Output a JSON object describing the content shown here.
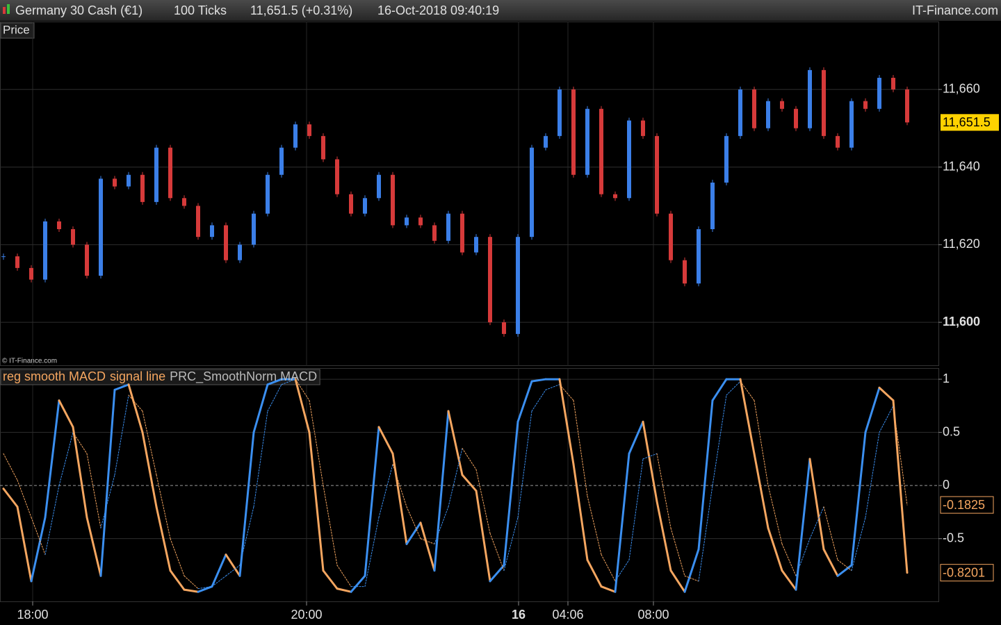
{
  "header": {
    "instrument": "Germany 30 Cash (€1)",
    "interval": "100 Ticks",
    "quote": "11,651.5 (+0.31%)",
    "timestamp": "16-Oct-2018 09:40:19",
    "brand": "IT-Finance.com"
  },
  "price_panel_label": "Price",
  "watermark": "© IT-Finance.com",
  "chart_data": [
    {
      "type": "candle",
      "name": "Price",
      "up_color": "#3b7fe8",
      "down_color": "#d63a3a",
      "closes": [
        11617,
        11614,
        11611,
        11626,
        11624,
        11620,
        11612,
        11637,
        11635,
        11638,
        11631,
        11645,
        11632,
        11630,
        11622,
        11625,
        11616,
        11620,
        11628,
        11638,
        11645,
        11651,
        11648,
        11642,
        11633,
        11628,
        11632,
        11638,
        11625,
        11627,
        11625,
        11621,
        11628,
        11618,
        11622,
        11600,
        11597,
        11622,
        11645,
        11648,
        11660,
        11638,
        11655,
        11633,
        11632,
        11652,
        11648,
        11628,
        11616,
        11610,
        11624,
        11636,
        11648,
        11660,
        11650,
        11657,
        11655,
        11650,
        11665,
        11648,
        11645,
        11657,
        11655,
        11663,
        11660,
        11651.5
      ],
      "last_label": "11,651.5",
      "xlim": [
        -0.25,
        67.25
      ],
      "ylim": [
        11588.75,
        11677.5
      ],
      "yticks": [
        {
          "value": 11600,
          "label": "11,600"
        },
        {
          "value": 11620,
          "label": "11,620"
        },
        {
          "value": 11640,
          "label": "11,640"
        },
        {
          "value": 11660,
          "label": "11,660"
        }
      ],
      "grid": true
    },
    {
      "type": "macd",
      "name": "PRC_SmoothNorm MACD",
      "series": [
        {
          "name": "reg smooth MACD",
          "color": "#f5a660",
          "up_color": "#3b8ff0",
          "style": "solid",
          "values": [
            -0.03,
            -0.2,
            -0.9,
            -0.3,
            0.8,
            0.55,
            -0.3,
            -0.85,
            0.9,
            0.95,
            0.5,
            -0.2,
            -0.8,
            -0.98,
            -1.0,
            -0.95,
            -0.65,
            -0.85,
            0.5,
            0.95,
            1.0,
            1.0,
            0.5,
            -0.8,
            -0.97,
            -1.0,
            -0.85,
            0.55,
            0.3,
            -0.55,
            -0.35,
            -0.8,
            0.7,
            0.1,
            -0.05,
            -0.9,
            -0.75,
            0.6,
            0.98,
            1.0,
            1.0,
            0.2,
            -0.7,
            -0.95,
            -1.0,
            0.3,
            0.6,
            -0.15,
            -0.8,
            -1.0,
            -0.6,
            0.8,
            1.0,
            1.0,
            0.3,
            -0.4,
            -0.8,
            -0.98,
            0.25,
            -0.6,
            -0.85,
            -0.75,
            0.5,
            0.92,
            0.8,
            -0.8201
          ]
        },
        {
          "name": "signal line",
          "color": "#f5a660",
          "up_color": "#3b8ff0",
          "style": "dotted",
          "values": [
            0.3,
            0.05,
            -0.3,
            -0.65,
            0.0,
            0.5,
            0.3,
            -0.4,
            0.1,
            0.85,
            0.7,
            0.1,
            -0.5,
            -0.85,
            -0.97,
            -0.95,
            -0.85,
            -0.75,
            -0.2,
            0.7,
            0.95,
            1.0,
            0.8,
            0.0,
            -0.75,
            -0.95,
            -0.95,
            -0.3,
            0.2,
            -0.2,
            -0.5,
            -0.55,
            -0.2,
            0.35,
            0.15,
            -0.45,
            -0.8,
            -0.3,
            0.7,
            0.9,
            0.95,
            0.8,
            -0.1,
            -0.65,
            -0.9,
            -0.7,
            0.25,
            0.3,
            -0.4,
            -0.85,
            -0.9,
            0.0,
            0.85,
            0.98,
            0.8,
            0.0,
            -0.55,
            -0.85,
            -0.5,
            -0.2,
            -0.7,
            -0.8,
            -0.3,
            0.5,
            0.75,
            -0.1825
          ]
        }
      ],
      "xlim": [
        -0.25,
        67.25
      ],
      "ylim": [
        -1.09,
        1.105
      ],
      "yticks": [
        1,
        0.5,
        0,
        -0.5
      ],
      "xticks": [
        {
          "value": 2.1,
          "label": "18:00"
        },
        {
          "value": 21.8,
          "label": "20:00"
        },
        {
          "value": 37.05,
          "label": "16"
        },
        {
          "value": 40.6,
          "label": "04:06"
        },
        {
          "value": 46.75,
          "label": "08:00"
        }
      ],
      "grid": true
    }
  ]
}
